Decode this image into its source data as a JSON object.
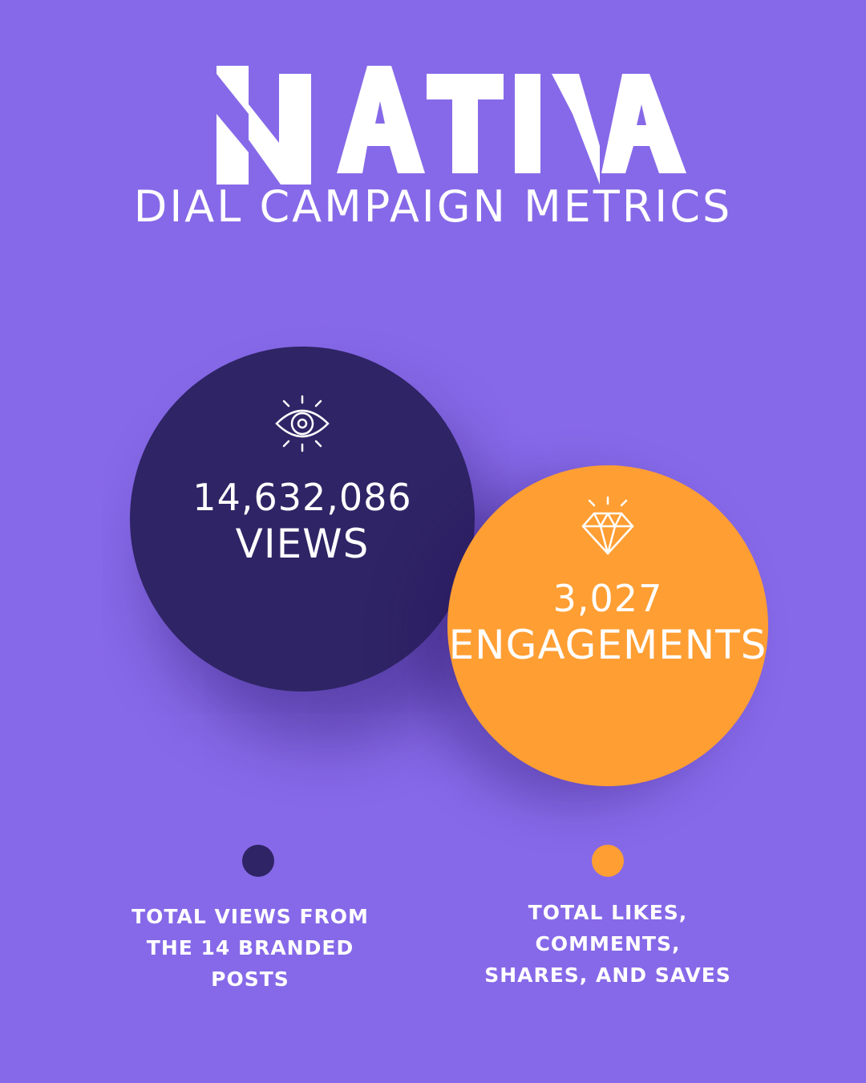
{
  "brand": {
    "logo_text": "NATIVA",
    "subtitle": "DIAL CAMPAIGN METRICS"
  },
  "metrics": [
    {
      "icon": "eye-icon",
      "value": "14,632,086",
      "label": "VIEWS",
      "color": "#2f2465",
      "caption_lines": [
        "TOTAL VIEWS FROM",
        "THE 14 BRANDED",
        "POSTS"
      ]
    },
    {
      "icon": "diamond-icon",
      "value": "3,027",
      "label": "ENGAGEMENTS",
      "color": "#ff9e33",
      "caption_lines": [
        "TOTAL LIKES,",
        "COMMENTS,",
        "SHARES, AND SAVES"
      ]
    }
  ],
  "colors": {
    "background": "#8669e8",
    "text": "#ffffff"
  }
}
